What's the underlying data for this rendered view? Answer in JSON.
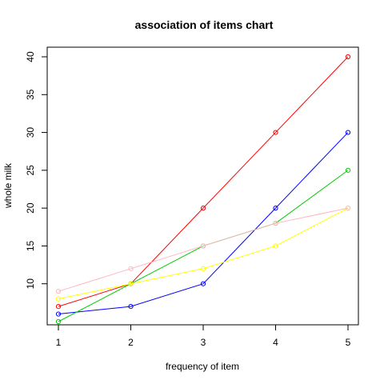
{
  "chart_data": {
    "type": "line",
    "title": "association of items chart",
    "xlabel": "frequency of item",
    "ylabel": "whole milk",
    "x": [
      1,
      2,
      3,
      4,
      5
    ],
    "xticks": [
      "1",
      "2",
      "3",
      "4",
      "5"
    ],
    "yticks": [
      "10",
      "15",
      "20",
      "25",
      "30",
      "35",
      "40"
    ],
    "xlim": [
      1,
      5
    ],
    "ylim": [
      6,
      40
    ],
    "grid": false,
    "legend": "none",
    "markers": "open-circle",
    "series": [
      {
        "color": "#ff0000",
        "values": [
          7,
          10,
          20,
          30,
          40
        ]
      },
      {
        "color": "#0000ff",
        "values": [
          6,
          7,
          10,
          20,
          30
        ]
      },
      {
        "color": "#00cc00",
        "values": [
          5,
          10,
          15,
          18,
          25
        ]
      },
      {
        "color": "#ffff00",
        "values": [
          8,
          10,
          12,
          15,
          20
        ]
      },
      {
        "color": "#ffb6c1",
        "values": [
          9,
          12,
          15,
          18,
          20
        ]
      }
    ]
  }
}
